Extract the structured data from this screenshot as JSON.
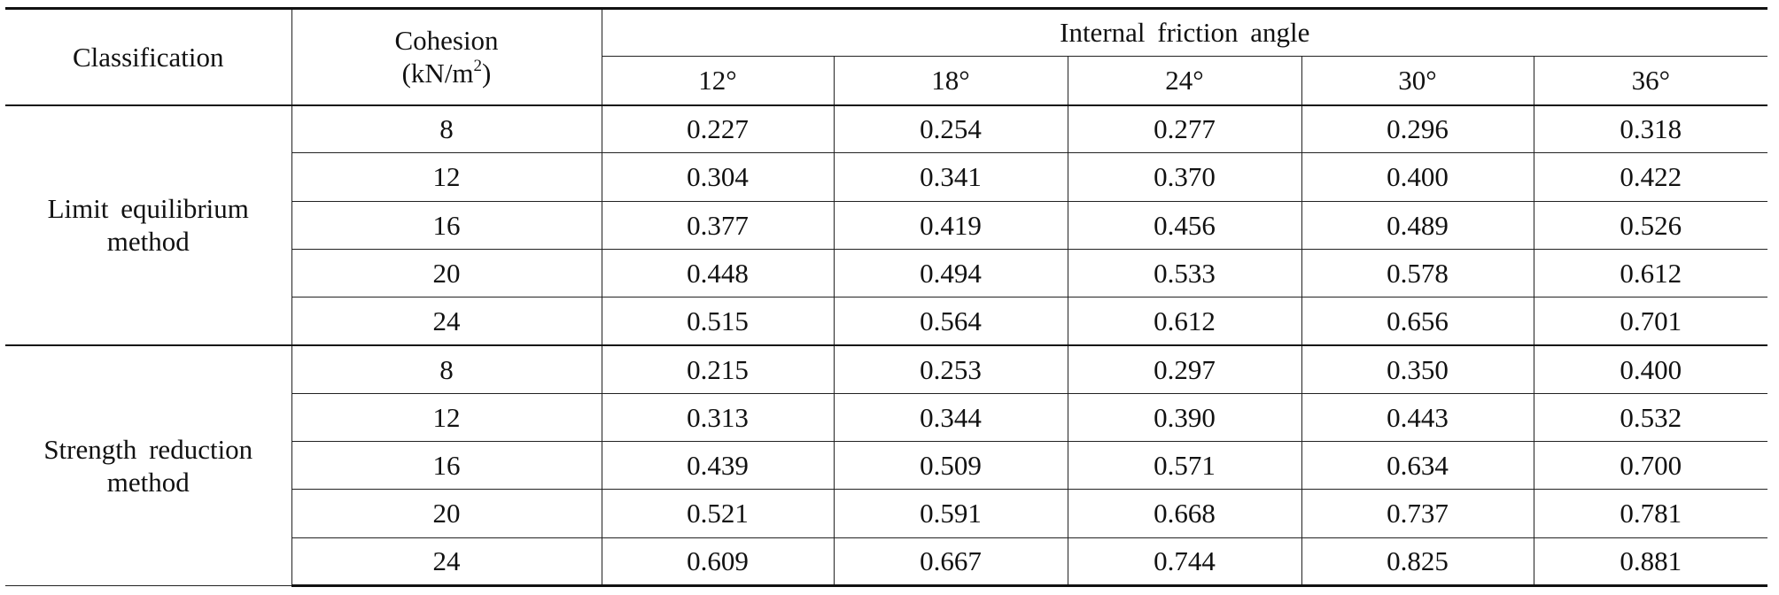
{
  "table": {
    "header": {
      "classification": "Classification",
      "cohesion": {
        "text": "Cohesion",
        "unit_pre": "(kN/m",
        "unit_sup": "2",
        "unit_post": ")"
      },
      "angle_title": "Internal friction angle",
      "angles": [
        "12°",
        "18°",
        "24°",
        "30°",
        "36°"
      ]
    },
    "groups": [
      {
        "label": "Limit equilibrium method",
        "rows": [
          {
            "cohesion": "8",
            "values": [
              "0.227",
              "0.254",
              "0.277",
              "0.296",
              "0.318"
            ]
          },
          {
            "cohesion": "12",
            "values": [
              "0.304",
              "0.341",
              "0.370",
              "0.400",
              "0.422"
            ]
          },
          {
            "cohesion": "16",
            "values": [
              "0.377",
              "0.419",
              "0.456",
              "0.489",
              "0.526"
            ]
          },
          {
            "cohesion": "20",
            "values": [
              "0.448",
              "0.494",
              "0.533",
              "0.578",
              "0.612"
            ]
          },
          {
            "cohesion": "24",
            "values": [
              "0.515",
              "0.564",
              "0.612",
              "0.656",
              "0.701"
            ]
          }
        ]
      },
      {
        "label": "Strength reduction method",
        "rows": [
          {
            "cohesion": "8",
            "values": [
              "0.215",
              "0.253",
              "0.297",
              "0.350",
              "0.400"
            ]
          },
          {
            "cohesion": "12",
            "values": [
              "0.313",
              "0.344",
              "0.390",
              "0.443",
              "0.532"
            ]
          },
          {
            "cohesion": "16",
            "values": [
              "0.439",
              "0.509",
              "0.571",
              "0.634",
              "0.700"
            ]
          },
          {
            "cohesion": "20",
            "values": [
              "0.521",
              "0.591",
              "0.668",
              "0.737",
              "0.781"
            ]
          },
          {
            "cohesion": "24",
            "values": [
              "0.609",
              "0.667",
              "0.744",
              "0.825",
              "0.881"
            ]
          }
        ]
      }
    ]
  }
}
